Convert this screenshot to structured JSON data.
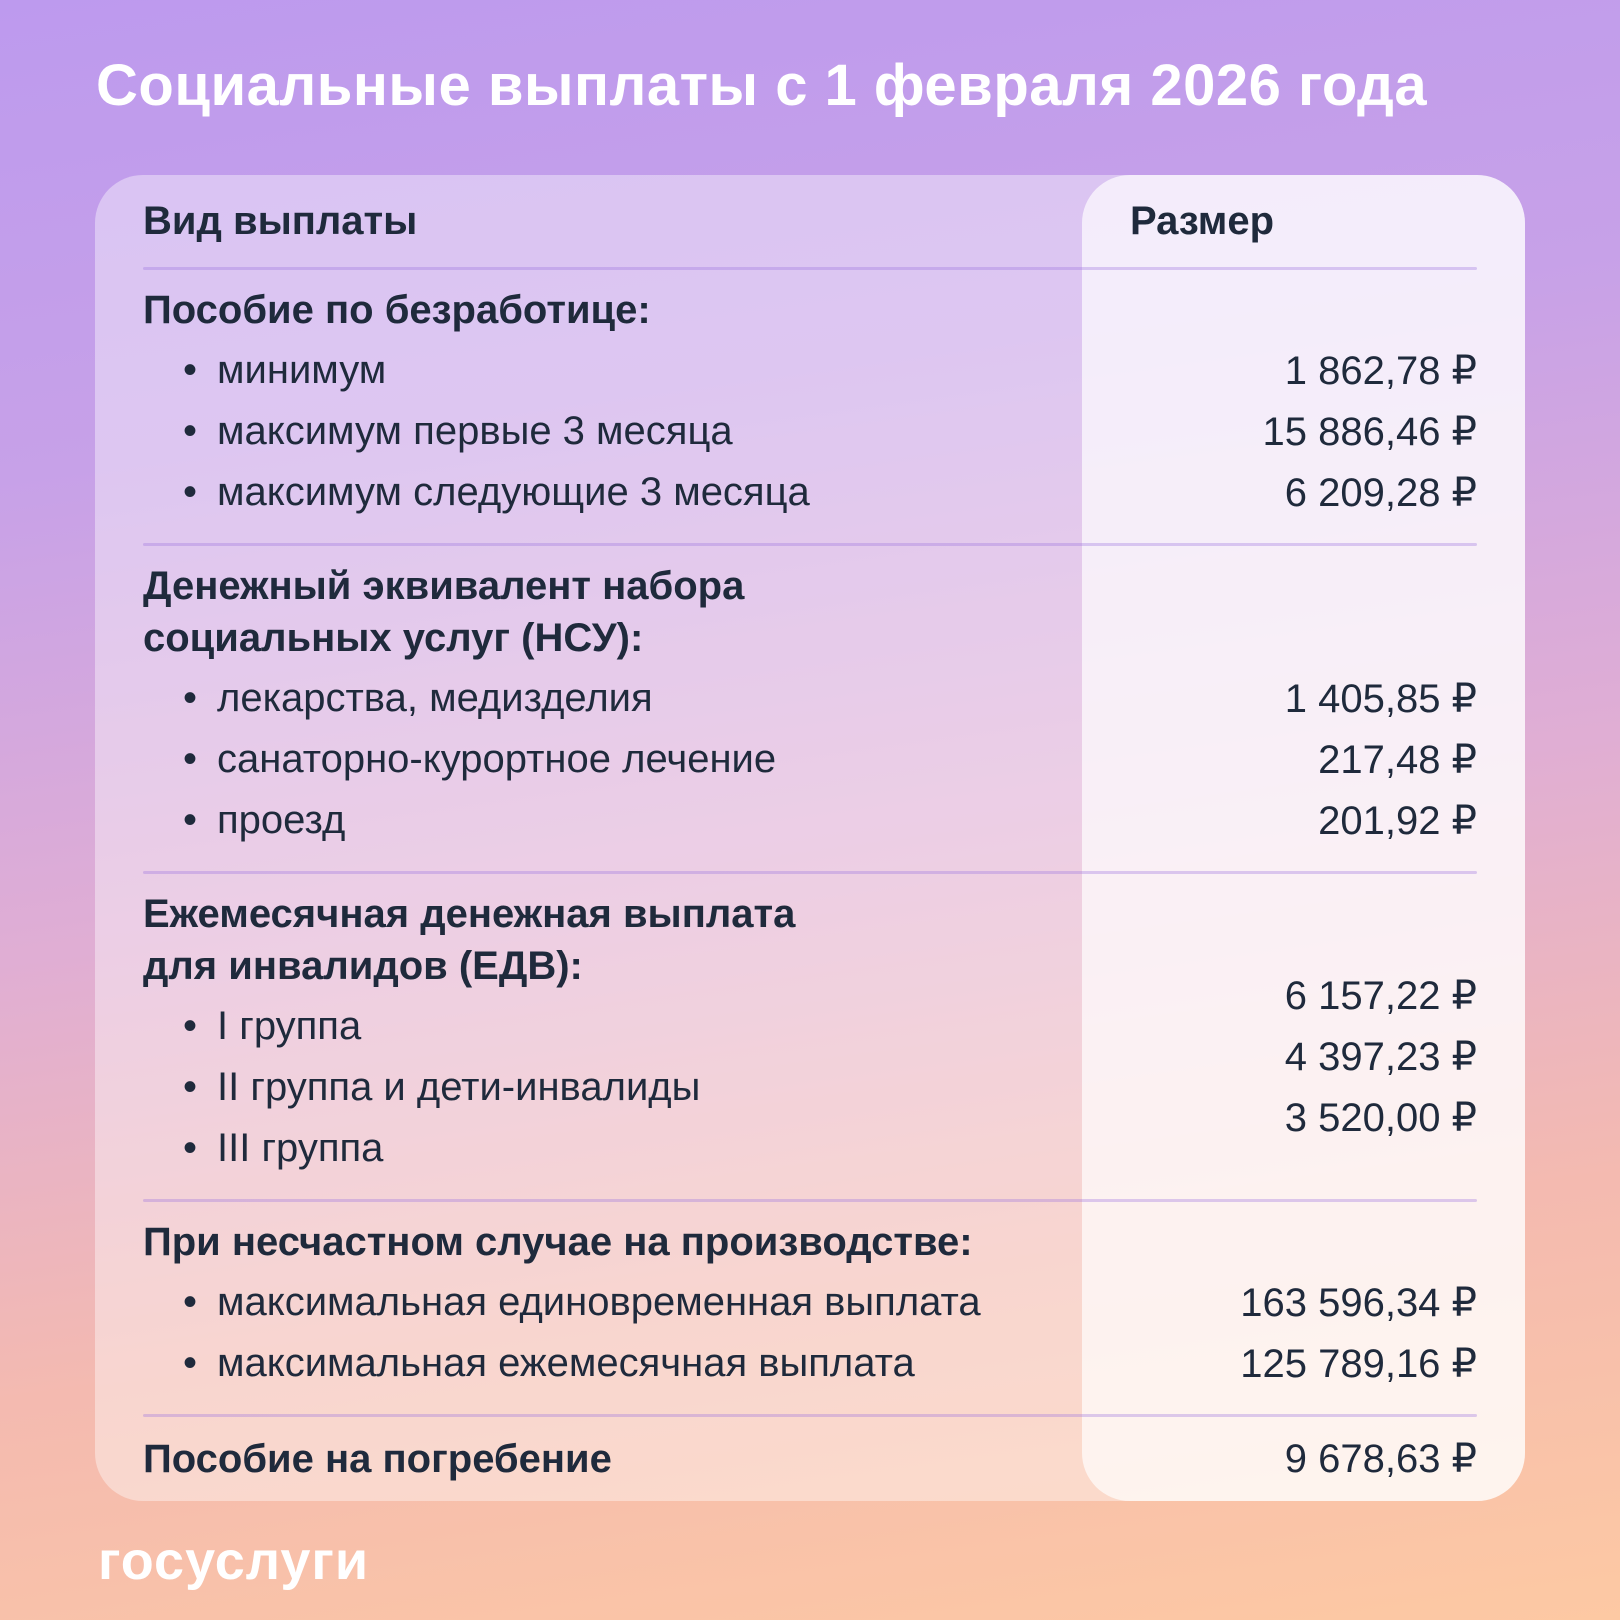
{
  "page": {
    "title": "Социальные выплаты с 1 февраля 2026 года",
    "footer_logo": "госуслуги"
  },
  "table": {
    "columns": {
      "type": "Вид выплаты",
      "amount": "Размер"
    },
    "sections": [
      {
        "header_lines": [
          "Пособие по безработице:"
        ],
        "items": [
          {
            "label": "минимум",
            "value": "1 862,78 ₽"
          },
          {
            "label": "максимум первые 3 месяца",
            "value": "15 886,46 ₽"
          },
          {
            "label": "максимум следующие 3 месяца",
            "value": "6 209,28 ₽"
          }
        ]
      },
      {
        "header_lines": [
          "Денежный эквивалент набора",
          "социальных услуг (НСУ):"
        ],
        "items": [
          {
            "label": "лекарства, медизделия",
            "value": "1 405,85 ₽"
          },
          {
            "label": "санаторно-курортное лечение",
            "value": "217,48 ₽"
          },
          {
            "label": "проезд",
            "value": "201,92 ₽"
          }
        ]
      },
      {
        "header_lines": [
          "Ежемесячная денежная выплата",
          "для инвалидов (ЕДВ):"
        ],
        "layout_hint": "values-raised",
        "items": [
          {
            "label": "I группа",
            "value": "6 157,22 ₽"
          },
          {
            "label": "II группа и дети-инвалиды",
            "value": "4 397,23 ₽"
          },
          {
            "label": "III группа",
            "value": "3 520,00 ₽"
          }
        ]
      },
      {
        "header_lines": [
          "При несчастном случае на производстве:"
        ],
        "items": [
          {
            "label": "максимальная единовременная выплата",
            "value": "163 596,34 ₽"
          },
          {
            "label": "максимальная ежемесячная выплата",
            "value": "125 789,16 ₽"
          }
        ]
      },
      {
        "header_lines": [
          "Пособие на погребение"
        ],
        "header_value": "9 678,63 ₽",
        "items": []
      }
    ]
  },
  "colors": {
    "text_dark": "#1f2a3c",
    "title_white": "#ffffff",
    "divider_purple": "#a478e0",
    "bg_gradient_top": "#bd9aee",
    "bg_gradient_mid": "#e0aed4",
    "bg_gradient_bottom": "#fdc9a3"
  }
}
